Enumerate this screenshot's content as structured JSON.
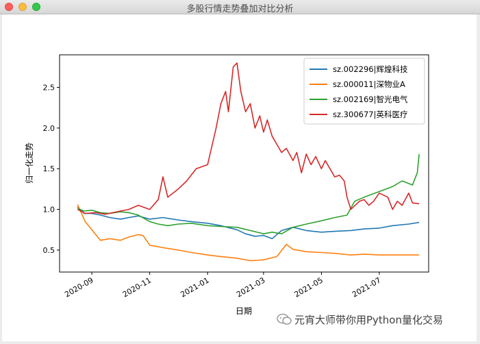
{
  "window": {
    "title": "多股行情走势叠加对比分析"
  },
  "watermark": {
    "text": "元宵大师带你用Python量化交易",
    "icon": "wechat-icon"
  },
  "colors": {
    "plot_border": "#000000"
  },
  "chart_data": {
    "type": "line",
    "title": "",
    "xlabel": "日期",
    "ylabel": "归一化走势",
    "xlim": [
      "2020-07-29",
      "2021-08-22"
    ],
    "ylim": [
      0.23,
      2.9
    ],
    "yticks": [
      0.5,
      1.0,
      1.5,
      2.0,
      2.5
    ],
    "yticklabels": [
      "0.5",
      "1.0",
      "1.5",
      "2.0",
      "2.5"
    ],
    "xticks": [
      "2020-09-01",
      "2020-11-01",
      "2021-01-01",
      "2021-03-01",
      "2021-05-01",
      "2021-07-01"
    ],
    "xticklabels": [
      "2020-09",
      "2020-11",
      "2021-01",
      "2021-03",
      "2021-05",
      "2021-07"
    ],
    "grid": false,
    "legend": {
      "position": "top-right"
    },
    "series": [
      {
        "name": "sz.002296|辉煌科技",
        "color": "#1f77b4",
        "points": [
          [
            "2020-08-17",
            1.03
          ],
          [
            "2020-08-24",
            0.95
          ],
          [
            "2020-09-01",
            0.95
          ],
          [
            "2020-09-10",
            0.93
          ],
          [
            "2020-09-20",
            0.9
          ],
          [
            "2020-10-01",
            0.88
          ],
          [
            "2020-10-10",
            0.9
          ],
          [
            "2020-10-20",
            0.92
          ],
          [
            "2020-11-01",
            0.88
          ],
          [
            "2020-11-15",
            0.9
          ],
          [
            "2020-12-01",
            0.87
          ],
          [
            "2020-12-15",
            0.85
          ],
          [
            "2021-01-01",
            0.83
          ],
          [
            "2021-01-15",
            0.8
          ],
          [
            "2021-02-01",
            0.75
          ],
          [
            "2021-02-10",
            0.7
          ],
          [
            "2021-02-20",
            0.67
          ],
          [
            "2021-03-01",
            0.68
          ],
          [
            "2021-03-10",
            0.64
          ],
          [
            "2021-03-20",
            0.74
          ],
          [
            "2021-04-01",
            0.78
          ],
          [
            "2021-04-15",
            0.74
          ],
          [
            "2021-05-01",
            0.72
          ],
          [
            "2021-05-15",
            0.73
          ],
          [
            "2021-06-01",
            0.74
          ],
          [
            "2021-06-15",
            0.76
          ],
          [
            "2021-07-01",
            0.77
          ],
          [
            "2021-07-15",
            0.8
          ],
          [
            "2021-08-01",
            0.82
          ],
          [
            "2021-08-12",
            0.84
          ]
        ]
      },
      {
        "name": "sz.000011|深物业A",
        "color": "#ff7f0e",
        "points": [
          [
            "2020-08-17",
            1.06
          ],
          [
            "2020-08-20",
            0.98
          ],
          [
            "2020-08-25",
            0.85
          ],
          [
            "2020-09-01",
            0.75
          ],
          [
            "2020-09-10",
            0.62
          ],
          [
            "2020-09-20",
            0.64
          ],
          [
            "2020-10-01",
            0.62
          ],
          [
            "2020-10-10",
            0.66
          ],
          [
            "2020-10-20",
            0.69
          ],
          [
            "2020-10-25",
            0.68
          ],
          [
            "2020-11-01",
            0.56
          ],
          [
            "2020-11-15",
            0.53
          ],
          [
            "2020-12-01",
            0.5
          ],
          [
            "2020-12-15",
            0.47
          ],
          [
            "2021-01-01",
            0.44
          ],
          [
            "2021-01-15",
            0.42
          ],
          [
            "2021-02-01",
            0.4
          ],
          [
            "2021-02-15",
            0.37
          ],
          [
            "2021-03-01",
            0.38
          ],
          [
            "2021-03-15",
            0.42
          ],
          [
            "2021-03-25",
            0.57
          ],
          [
            "2021-04-01",
            0.51
          ],
          [
            "2021-04-15",
            0.48
          ],
          [
            "2021-05-01",
            0.47
          ],
          [
            "2021-05-15",
            0.46
          ],
          [
            "2021-06-01",
            0.44
          ],
          [
            "2021-06-15",
            0.45
          ],
          [
            "2021-07-01",
            0.44
          ],
          [
            "2021-07-15",
            0.44
          ],
          [
            "2021-08-12",
            0.44
          ]
        ]
      },
      {
        "name": "sz.002169|智光电气",
        "color": "#2ca02c",
        "points": [
          [
            "2020-08-17",
            1.01
          ],
          [
            "2020-08-24",
            0.98
          ],
          [
            "2020-09-01",
            0.99
          ],
          [
            "2020-09-10",
            0.96
          ],
          [
            "2020-09-20",
            0.95
          ],
          [
            "2020-10-01",
            0.97
          ],
          [
            "2020-10-10",
            0.96
          ],
          [
            "2020-10-20",
            0.93
          ],
          [
            "2020-11-01",
            0.85
          ],
          [
            "2020-11-10",
            0.82
          ],
          [
            "2020-11-20",
            0.8
          ],
          [
            "2020-12-01",
            0.82
          ],
          [
            "2020-12-15",
            0.83
          ],
          [
            "2021-01-01",
            0.8
          ],
          [
            "2021-01-15",
            0.79
          ],
          [
            "2021-02-01",
            0.78
          ],
          [
            "2021-02-15",
            0.74
          ],
          [
            "2021-03-01",
            0.7
          ],
          [
            "2021-03-10",
            0.72
          ],
          [
            "2021-03-20",
            0.7
          ],
          [
            "2021-04-01",
            0.78
          ],
          [
            "2021-04-15",
            0.82
          ],
          [
            "2021-05-01",
            0.86
          ],
          [
            "2021-05-15",
            0.9
          ],
          [
            "2021-05-28",
            0.93
          ],
          [
            "2021-06-05",
            1.1
          ],
          [
            "2021-06-15",
            1.15
          ],
          [
            "2021-07-01",
            1.22
          ],
          [
            "2021-07-15",
            1.28
          ],
          [
            "2021-07-25",
            1.35
          ],
          [
            "2021-08-05",
            1.3
          ],
          [
            "2021-08-10",
            1.45
          ],
          [
            "2021-08-12",
            1.68
          ]
        ]
      },
      {
        "name": "sz.300677|英科医疗",
        "color": "#d62728",
        "points": [
          [
            "2020-08-17",
            1.0
          ],
          [
            "2020-08-25",
            0.95
          ],
          [
            "2020-09-05",
            0.96
          ],
          [
            "2020-09-15",
            0.94
          ],
          [
            "2020-10-01",
            0.98
          ],
          [
            "2020-10-10",
            1.0
          ],
          [
            "2020-10-20",
            1.05
          ],
          [
            "2020-11-01",
            1.0
          ],
          [
            "2020-11-10",
            1.12
          ],
          [
            "2020-11-15",
            1.4
          ],
          [
            "2020-11-20",
            1.15
          ],
          [
            "2020-12-01",
            1.25
          ],
          [
            "2020-12-10",
            1.35
          ],
          [
            "2020-12-20",
            1.5
          ],
          [
            "2021-01-01",
            1.55
          ],
          [
            "2021-01-05",
            1.75
          ],
          [
            "2021-01-10",
            2.0
          ],
          [
            "2021-01-15",
            2.3
          ],
          [
            "2021-01-20",
            2.45
          ],
          [
            "2021-01-23",
            2.2
          ],
          [
            "2021-01-28",
            2.75
          ],
          [
            "2021-02-01",
            2.8
          ],
          [
            "2021-02-05",
            2.45
          ],
          [
            "2021-02-10",
            2.2
          ],
          [
            "2021-02-15",
            2.3
          ],
          [
            "2021-02-20",
            2.0
          ],
          [
            "2021-02-25",
            2.15
          ],
          [
            "2021-03-01",
            1.95
          ],
          [
            "2021-03-05",
            2.1
          ],
          [
            "2021-03-10",
            1.9
          ],
          [
            "2021-03-15",
            1.8
          ],
          [
            "2021-03-20",
            1.7
          ],
          [
            "2021-03-25",
            1.75
          ],
          [
            "2021-04-01",
            1.6
          ],
          [
            "2021-04-05",
            1.7
          ],
          [
            "2021-04-10",
            1.45
          ],
          [
            "2021-04-15",
            1.68
          ],
          [
            "2021-04-20",
            1.55
          ],
          [
            "2021-04-25",
            1.65
          ],
          [
            "2021-05-01",
            1.5
          ],
          [
            "2021-05-05",
            1.6
          ],
          [
            "2021-05-10",
            1.5
          ],
          [
            "2021-05-15",
            1.4
          ],
          [
            "2021-05-20",
            1.42
          ],
          [
            "2021-05-25",
            1.35
          ],
          [
            "2021-05-28",
            1.15
          ],
          [
            "2021-06-01",
            1.0
          ],
          [
            "2021-06-10",
            1.1
          ],
          [
            "2021-06-15",
            1.12
          ],
          [
            "2021-06-20",
            1.05
          ],
          [
            "2021-06-25",
            1.1
          ],
          [
            "2021-07-01",
            1.2
          ],
          [
            "2021-07-10",
            1.15
          ],
          [
            "2021-07-15",
            1.0
          ],
          [
            "2021-07-20",
            1.1
          ],
          [
            "2021-07-25",
            1.05
          ],
          [
            "2021-08-01",
            1.2
          ],
          [
            "2021-08-05",
            1.08
          ],
          [
            "2021-08-12",
            1.07
          ]
        ]
      }
    ]
  }
}
